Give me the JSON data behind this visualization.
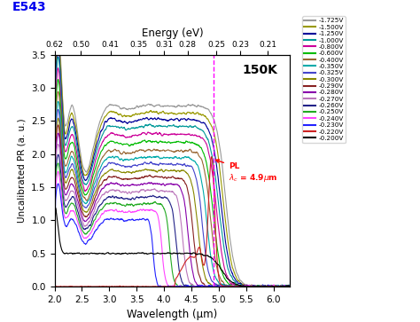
{
  "title": "E543",
  "title_color": "#0000EE",
  "temp_label": "150K",
  "xlabel": "Wavelength (μm)",
  "ylabel": "Uncalibrated PR (a. u.)",
  "top_xlabel": "Energy (eV)",
  "xlim": [
    2.0,
    6.3
  ],
  "ylim": [
    0.0,
    3.5
  ],
  "xticks": [
    2.0,
    2.5,
    3.0,
    3.5,
    4.0,
    4.5,
    5.0,
    5.5,
    6.0
  ],
  "yticks": [
    0.0,
    0.5,
    1.0,
    1.5,
    2.0,
    2.5,
    3.0,
    3.5
  ],
  "energy_ticks_wl": [
    2.0,
    2.48,
    3.02,
    3.54,
    4.0,
    4.43,
    4.96,
    5.39,
    5.9
  ],
  "energy_ticks_ev": [
    "0.62",
    "0.50",
    "0.41",
    "0.35",
    "0.31",
    "0.28",
    "0.25",
    "0.23",
    "0.21"
  ],
  "dashed_line_wl": 4.9,
  "background_color": "#ffffff",
  "legend_entries": [
    {
      "label": "-1.725V",
      "color": "#999999"
    },
    {
      "label": "-1.500V",
      "color": "#999900"
    },
    {
      "label": "-1.250V",
      "color": "#000099"
    },
    {
      "label": "-1.000V",
      "color": "#009999"
    },
    {
      "label": "-0.800V",
      "color": "#cc0099"
    },
    {
      "label": "-0.600V",
      "color": "#00bb00"
    },
    {
      "label": "-0.400V",
      "color": "#996633"
    },
    {
      "label": "-0.350V",
      "color": "#00aaaa"
    },
    {
      "label": "-0.325V",
      "color": "#4444cc"
    },
    {
      "label": "-0.300V",
      "color": "#888800"
    },
    {
      "label": "-0.290V",
      "color": "#882222"
    },
    {
      "label": "-0.280V",
      "color": "#8800aa"
    },
    {
      "label": "-0.270V",
      "color": "#bb77bb"
    },
    {
      "label": "-0.260V",
      "color": "#222288"
    },
    {
      "label": "-0.250V",
      "color": "#22aa22"
    },
    {
      "label": "-0.240V",
      "color": "#ff44ff"
    },
    {
      "label": "-0.230V",
      "color": "#2222ff"
    },
    {
      "label": "-0.220V",
      "color": "#cc2222"
    },
    {
      "label": "-0.200V",
      "color": "#000000"
    }
  ],
  "spectra": [
    {
      "peak": 3.35,
      "plateau": 2.73,
      "cutoff": 5.12,
      "sharpness": 6
    },
    {
      "peak": 3.2,
      "plateau": 2.62,
      "cutoff": 5.08,
      "sharpness": 6
    },
    {
      "peak": 3.05,
      "plateau": 2.52,
      "cutoff": 5.04,
      "sharpness": 6
    },
    {
      "peak": 2.95,
      "plateau": 2.42,
      "cutoff": 5.0,
      "sharpness": 6
    },
    {
      "peak": 2.8,
      "plateau": 2.3,
      "cutoff": 4.96,
      "sharpness": 7
    },
    {
      "peak": 2.65,
      "plateau": 2.18,
      "cutoff": 4.9,
      "sharpness": 7
    },
    {
      "peak": 2.5,
      "plateau": 2.05,
      "cutoff": 4.85,
      "sharpness": 8
    },
    {
      "peak": 2.38,
      "plateau": 1.95,
      "cutoff": 4.78,
      "sharpness": 8
    },
    {
      "peak": 2.28,
      "plateau": 1.85,
      "cutoff": 4.7,
      "sharpness": 9
    },
    {
      "peak": 2.18,
      "plateau": 1.75,
      "cutoff": 4.62,
      "sharpness": 9
    },
    {
      "peak": 2.08,
      "plateau": 1.65,
      "cutoff": 4.53,
      "sharpness": 10
    },
    {
      "peak": 1.98,
      "plateau": 1.55,
      "cutoff": 4.44,
      "sharpness": 11
    },
    {
      "peak": 1.85,
      "plateau": 1.45,
      "cutoff": 4.34,
      "sharpness": 12
    },
    {
      "peak": 1.72,
      "plateau": 1.35,
      "cutoff": 4.22,
      "sharpness": 13
    },
    {
      "peak": 1.6,
      "plateau": 1.25,
      "cutoff": 4.1,
      "sharpness": 15
    },
    {
      "peak": 1.48,
      "plateau": 1.15,
      "cutoff": 3.96,
      "sharpness": 17
    },
    {
      "peak": 1.35,
      "plateau": 1.02,
      "cutoff": 3.8,
      "sharpness": 20
    },
    {
      "peak": 0.0,
      "plateau": 0.0,
      "cutoff": 4.9,
      "sharpness": 0
    },
    {
      "peak": 0.75,
      "plateau": 0.5,
      "cutoff": 5.05,
      "sharpness": 5
    }
  ]
}
